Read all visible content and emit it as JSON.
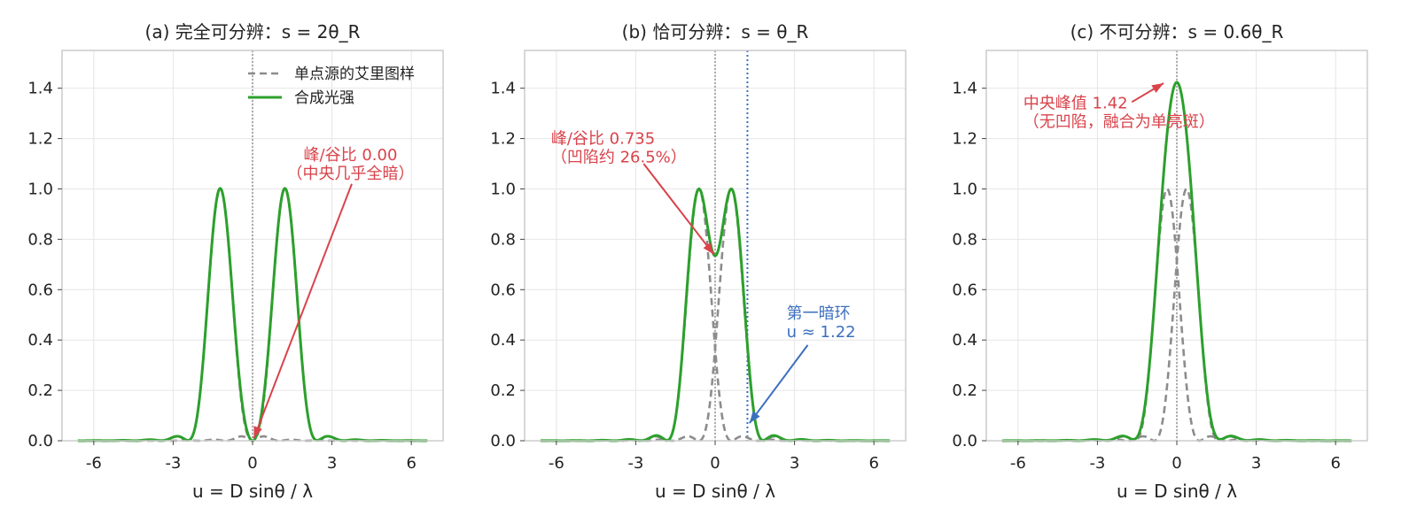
{
  "colors": {
    "single": "#8c8c8c",
    "combined": "#2ca02c",
    "ann_red": "#d9434b",
    "ann_blue": "#3c6fbf",
    "grid": "#e6e6e6",
    "frame": "#cccccc"
  },
  "chart_data": [
    {
      "type": "line",
      "title": "(a) 完全可分辨：s = 2θ_R",
      "xlabel": "u = D sinθ / λ",
      "ylabel": "",
      "xlim": [
        -7.2,
        7.2
      ],
      "ylim": [
        0,
        1.55
      ],
      "xticks": [
        -6,
        -3,
        0,
        3,
        6
      ],
      "xtick_labels": [
        "-6",
        "-3",
        "0",
        "3",
        "6"
      ],
      "yticks": [
        0.0,
        0.2,
        0.4,
        0.6,
        0.8,
        1.0,
        1.2,
        1.4
      ],
      "ytick_labels": [
        "0.0",
        "0.2",
        "0.4",
        "0.6",
        "0.8",
        "1.0",
        "1.2",
        "1.4"
      ],
      "grid": true,
      "separation": 2.44,
      "x_range": [
        -6.6,
        6.6
      ],
      "vlines": [
        {
          "x": 0,
          "style": "dotted",
          "color": "#777777"
        }
      ],
      "legend": {
        "placement": "top-right",
        "entries": [
          "单点源的艾里图样",
          "合成光强"
        ]
      },
      "series": [
        {
          "name": "单点源的艾里图样",
          "kind": "single",
          "style": "dashed"
        },
        {
          "name": "合成光强",
          "kind": "combined",
          "style": "solid"
        }
      ],
      "annotations": [
        {
          "lines": [
            "峰/谷比 0.00",
            "（中央几乎全暗）"
          ],
          "text_x": 3.7,
          "text_y": 1.115,
          "point": [
            0.05,
            0.01
          ],
          "arrow_from": [
            3.75,
            1.02
          ],
          "color": "red",
          "align": "middle"
        }
      ]
    },
    {
      "type": "line",
      "title": "(b) 恰可分辨：s = θ_R",
      "xlabel": "u = D sinθ / λ",
      "ylabel": "",
      "xlim": [
        -7.2,
        7.2
      ],
      "ylim": [
        0,
        1.55
      ],
      "xticks": [
        -6,
        -3,
        0,
        3,
        6
      ],
      "xtick_labels": [
        "-6",
        "-3",
        "0",
        "3",
        "6"
      ],
      "yticks": [
        0.0,
        0.2,
        0.4,
        0.6,
        0.8,
        1.0,
        1.2,
        1.4
      ],
      "ytick_labels": [
        "0.0",
        "0.2",
        "0.4",
        "0.6",
        "0.8",
        "1.0",
        "1.2",
        "1.4"
      ],
      "grid": true,
      "separation": 1.22,
      "x_range": [
        -6.6,
        6.6
      ],
      "vlines": [
        {
          "x": 0,
          "style": "dotted",
          "color": "#777777"
        },
        {
          "x": 1.22,
          "style": "dotted",
          "color": "#3c6fbf"
        }
      ],
      "series": [
        {
          "name": "",
          "kind": "single",
          "style": "dashed"
        },
        {
          "name": "",
          "kind": "combined",
          "style": "solid"
        }
      ],
      "annotations": [
        {
          "lines": [
            "峰/谷比 0.735",
            "（凹陷约 26.5%）"
          ],
          "text_x": -6.2,
          "text_y": 1.18,
          "point": [
            -0.05,
            0.74
          ],
          "arrow_from": [
            -2.7,
            1.1
          ],
          "color": "red",
          "align": "start"
        },
        {
          "lines": [
            "第一暗环",
            "u ≈ 1.22"
          ],
          "text_x": 2.7,
          "text_y": 0.485,
          "point": [
            1.3,
            0.07
          ],
          "arrow_from": [
            3.5,
            0.38
          ],
          "color": "blue",
          "align": "start"
        }
      ]
    },
    {
      "type": "line",
      "title": "(c) 不可分辨：s = 0.6θ_R",
      "xlabel": "u = D sinθ / λ",
      "ylabel": "",
      "xlim": [
        -7.2,
        7.2
      ],
      "ylim": [
        0,
        1.55
      ],
      "xticks": [
        -6,
        -3,
        0,
        3,
        6
      ],
      "xtick_labels": [
        "-6",
        "-3",
        "0",
        "3",
        "6"
      ],
      "yticks": [
        0.0,
        0.2,
        0.4,
        0.6,
        0.8,
        1.0,
        1.2,
        1.4
      ],
      "ytick_labels": [
        "0.0",
        "0.2",
        "0.4",
        "0.6",
        "0.8",
        "1.0",
        "1.2",
        "1.4"
      ],
      "grid": true,
      "separation": 0.732,
      "x_range": [
        -6.6,
        6.6
      ],
      "vlines": [
        {
          "x": 0,
          "style": "dotted",
          "color": "#777777"
        }
      ],
      "series": [
        {
          "name": "",
          "kind": "single",
          "style": "dashed"
        },
        {
          "name": "",
          "kind": "combined",
          "style": "solid"
        }
      ],
      "annotations": [
        {
          "lines": [
            "中央峰值 1.42",
            "（无凹陷，融合为单亮斑）"
          ],
          "text_x": -5.8,
          "text_y": 1.32,
          "point": [
            -0.5,
            1.42
          ],
          "arrow_from": [
            -1.7,
            1.345
          ],
          "color": "red",
          "align": "start"
        }
      ],
      "peak_value": 1.42
    }
  ]
}
